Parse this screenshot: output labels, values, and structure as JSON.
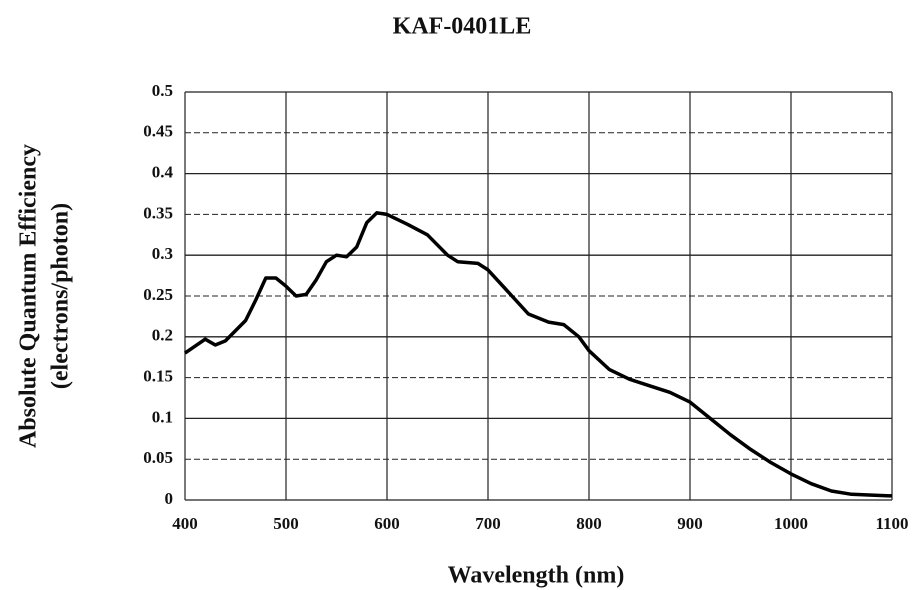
{
  "chart_data": {
    "type": "line",
    "title": "KAF-0401LE",
    "x_label": "Wavelength (nm)",
    "y_label": [
      "Absolute Quantum Efficiency",
      "(electrons/photon)"
    ],
    "xlim": [
      400,
      1100
    ],
    "xticks": [
      400,
      500,
      600,
      700,
      800,
      900,
      1000,
      1100
    ],
    "ylim": [
      0,
      0.5
    ],
    "yticks": [
      0,
      0.05,
      0.1,
      0.15,
      0.2,
      0.25,
      0.3,
      0.35,
      0.4,
      0.45,
      0.5
    ],
    "grid": true,
    "series": [
      {
        "color": "#000000",
        "x": [
          400,
          420,
          430,
          440,
          460,
          470,
          480,
          490,
          500,
          510,
          520,
          530,
          540,
          550,
          560,
          570,
          580,
          590,
          600,
          620,
          640,
          660,
          670,
          690,
          700,
          720,
          740,
          760,
          775,
          790,
          800,
          820,
          840,
          860,
          880,
          900,
          920,
          940,
          960,
          980,
          1000,
          1020,
          1040,
          1060,
          1080,
          1100
        ],
        "values": [
          0.18,
          0.197,
          0.19,
          0.195,
          0.22,
          0.245,
          0.272,
          0.272,
          0.262,
          0.25,
          0.252,
          0.27,
          0.292,
          0.3,
          0.298,
          0.31,
          0.34,
          0.352,
          0.35,
          0.338,
          0.325,
          0.3,
          0.292,
          0.29,
          0.282,
          0.255,
          0.228,
          0.218,
          0.215,
          0.2,
          0.183,
          0.16,
          0.148,
          0.14,
          0.132,
          0.12,
          0.1,
          0.08,
          0.062,
          0.046,
          0.032,
          0.02,
          0.011,
          0.007,
          0.006,
          0.005
        ]
      }
    ]
  }
}
